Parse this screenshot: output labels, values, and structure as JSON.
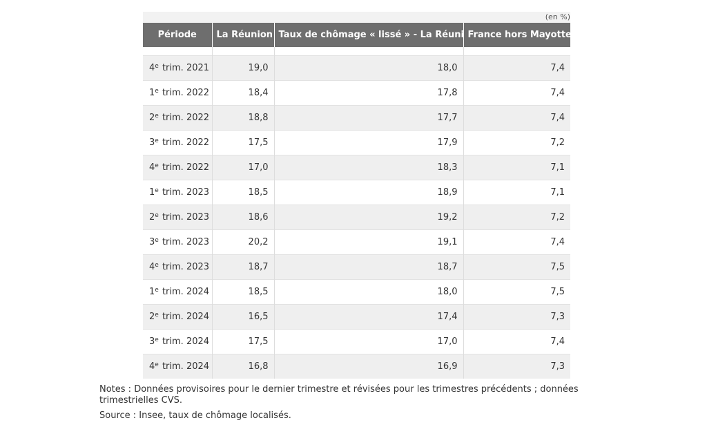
{
  "unit_label": "(en %)",
  "columns": [
    "Période",
    "La Réunion",
    "Taux de chômage « lissé » - La Réunion",
    "France hors Mayotte"
  ],
  "rows": [
    {
      "num": "4",
      "sup": "e",
      "rest": " trim. 2021",
      "reunion": "19,0",
      "lisse": "18,0",
      "france": "7,4"
    },
    {
      "num": "1",
      "sup": "e",
      "rest": " trim. 2022",
      "reunion": "18,4",
      "lisse": "17,8",
      "france": "7,4"
    },
    {
      "num": "2",
      "sup": "e",
      "rest": " trim. 2022",
      "reunion": "18,8",
      "lisse": "17,7",
      "france": "7,4"
    },
    {
      "num": "3",
      "sup": "e",
      "rest": " trim. 2022",
      "reunion": "17,5",
      "lisse": "17,9",
      "france": "7,2"
    },
    {
      "num": "4",
      "sup": "e",
      "rest": " trim. 2022",
      "reunion": "17,0",
      "lisse": "18,3",
      "france": "7,1"
    },
    {
      "num": "1",
      "sup": "e",
      "rest": " trim. 2023",
      "reunion": "18,5",
      "lisse": "18,9",
      "france": "7,1"
    },
    {
      "num": "2",
      "sup": "e",
      "rest": " trim. 2023",
      "reunion": "18,6",
      "lisse": "19,2",
      "france": "7,2"
    },
    {
      "num": "3",
      "sup": "e",
      "rest": " trim. 2023",
      "reunion": "20,2",
      "lisse": "19,1",
      "france": "7,4"
    },
    {
      "num": "4",
      "sup": "e",
      "rest": " trim. 2023",
      "reunion": "18,7",
      "lisse": "18,7",
      "france": "7,5"
    },
    {
      "num": "1",
      "sup": "e",
      "rest": " trim. 2024",
      "reunion": "18,5",
      "lisse": "18,0",
      "france": "7,5"
    },
    {
      "num": "2",
      "sup": "e",
      "rest": " trim. 2024",
      "reunion": "16,5",
      "lisse": "17,4",
      "france": "7,3"
    },
    {
      "num": "3",
      "sup": "e",
      "rest": " trim. 2024",
      "reunion": "17,5",
      "lisse": "17,0",
      "france": "7,4"
    },
    {
      "num": "4",
      "sup": "e",
      "rest": " trim. 2024",
      "reunion": "16,8",
      "lisse": "16,9",
      "france": "7,3"
    }
  ],
  "notes": "Notes : Données provisoires pour le dernier trimestre et révisées pour les trimestres précédents ; données trimestrielles CVS.",
  "source": "Source : Insee, taux de chômage localisés."
}
